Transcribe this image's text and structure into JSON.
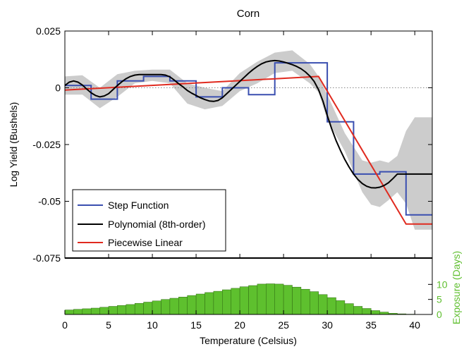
{
  "chart_data": {
    "type": "line",
    "title": "Corn",
    "xlabel": "Temperature (Celsius)",
    "ylabel": "Log Yield (Bushels)",
    "y2label": "Exposure (Days)",
    "xlim": [
      0,
      42
    ],
    "ylim": [
      -0.075,
      0.025
    ],
    "y2lim": [
      0,
      15
    ],
    "x_ticks": [
      "0",
      "5",
      "10",
      "15",
      "20",
      "25",
      "30",
      "35",
      "40"
    ],
    "y_ticks": [
      "0.025",
      "0",
      "-0.025",
      "-0.05",
      "-0.075"
    ],
    "y2_ticks": [
      "0",
      "5",
      "10"
    ],
    "legend_position": "bottom-left",
    "colors": {
      "step": "#3a4fb0",
      "poly": "#000000",
      "linear": "#e02a1f",
      "band": "#cccccc",
      "hist": "#5ec02e"
    },
    "series": [
      {
        "name": "Step Function",
        "kind": "step",
        "edges": [
          0,
          3,
          6,
          9,
          12,
          15,
          18,
          21,
          24,
          27,
          30,
          33,
          36,
          39,
          42
        ],
        "values": [
          0.001,
          -0.005,
          0.003,
          0.005,
          0.003,
          -0.004,
          0.0,
          -0.003,
          0.011,
          0.011,
          -0.015,
          -0.038,
          -0.037,
          -0.056
        ]
      },
      {
        "name": "Polynomial (8th-order)",
        "kind": "line",
        "x": [
          0,
          0.5,
          1,
          1.5,
          2,
          2.5,
          3,
          3.5,
          4,
          4.5,
          5,
          5.5,
          6,
          6.5,
          7,
          7.5,
          8,
          8.5,
          9,
          9.5,
          10,
          10.5,
          11,
          11.5,
          12,
          12.5,
          13,
          13.5,
          14,
          14.5,
          15,
          15.5,
          16,
          16.5,
          17,
          17.5,
          18,
          18.5,
          19,
          19.5,
          20,
          20.5,
          21,
          21.5,
          22,
          22.5,
          23,
          23.5,
          24,
          24.5,
          25,
          25.5,
          26,
          26.5,
          27,
          27.5,
          28,
          28.5,
          29,
          29.5,
          30,
          30.5,
          31,
          31.5,
          32,
          32.5,
          33,
          33.5,
          34,
          34.5,
          35,
          35.5,
          36,
          36.5,
          37,
          37.5,
          38,
          38.5,
          39,
          39.5,
          40,
          40.5,
          41,
          41.5,
          42
        ],
        "values": [
          0.001,
          0.0025,
          0.003,
          0.0025,
          0.0012,
          -0.0006,
          -0.0022,
          -0.0034,
          -0.004,
          -0.0036,
          -0.0026,
          -0.0008,
          0.001,
          0.0026,
          0.004,
          0.005,
          0.0056,
          0.0058,
          0.0058,
          0.0058,
          0.0058,
          0.0058,
          0.0058,
          0.0056,
          0.0048,
          0.0034,
          0.0018,
          0.0004,
          -0.0012,
          -0.0024,
          -0.0034,
          -0.0044,
          -0.0052,
          -0.0058,
          -0.006,
          -0.0056,
          -0.0044,
          -0.0026,
          -0.0008,
          0.001,
          0.0028,
          0.0046,
          0.0064,
          0.008,
          0.0094,
          0.0106,
          0.0114,
          0.0118,
          0.012,
          0.0118,
          0.0114,
          0.0108,
          0.0102,
          0.0094,
          0.0084,
          0.007,
          0.0052,
          0.0028,
          -0.0008,
          -0.0058,
          -0.0122,
          -0.018,
          -0.0232,
          -0.0276,
          -0.0316,
          -0.035,
          -0.038,
          -0.0404,
          -0.0422,
          -0.0434,
          -0.044,
          -0.0441,
          -0.0438,
          -0.043,
          -0.0418,
          -0.04,
          -0.038,
          -0.038,
          -0.038,
          -0.038,
          -0.038,
          -0.038,
          -0.038,
          -0.038,
          -0.038
        ]
      },
      {
        "name": "Piecewise Linear",
        "kind": "line",
        "x": [
          0,
          29,
          39,
          42
        ],
        "values": [
          -0.001,
          0.005,
          -0.06,
          -0.06
        ]
      }
    ],
    "confidence_band": {
      "x": [
        0,
        2,
        4,
        6,
        8,
        10,
        12,
        14,
        16,
        18,
        20,
        22,
        24,
        26,
        28,
        29,
        30,
        32,
        34,
        35,
        36,
        37,
        38,
        39,
        40,
        42
      ],
      "upper": [
        0.005,
        0.0055,
        0.0,
        0.006,
        0.0075,
        0.008,
        0.008,
        0.002,
        0.0,
        -0.0015,
        0.0065,
        0.0115,
        0.0155,
        0.0165,
        0.0105,
        0.005,
        -0.003,
        -0.02,
        -0.032,
        -0.033,
        -0.032,
        -0.033,
        -0.03,
        -0.019,
        -0.013,
        -0.013
      ],
      "lower": [
        -0.003,
        -0.003,
        -0.009,
        -0.004,
        0.002,
        0.003,
        0.002,
        -0.007,
        -0.0095,
        -0.008,
        -0.0015,
        0.002,
        0.0065,
        0.0075,
        0.002,
        -0.002,
        -0.014,
        -0.028,
        -0.046,
        -0.0515,
        -0.0525,
        -0.0495,
        -0.046,
        -0.051,
        -0.0625,
        -0.0625
      ]
    },
    "exposure_histogram": {
      "bin_edges_start": 0,
      "bin_width": 1,
      "values": [
        1.5,
        1.7,
        1.9,
        2.1,
        2.4,
        2.7,
        3.0,
        3.3,
        3.7,
        4.1,
        4.5,
        5.0,
        5.4,
        5.8,
        6.3,
        6.8,
        7.3,
        7.7,
        8.2,
        8.7,
        9.2,
        9.6,
        10.1,
        10.2,
        10.1,
        9.7,
        9.1,
        8.4,
        7.6,
        6.6,
        5.6,
        4.6,
        3.6,
        2.7,
        2.0,
        1.3,
        0.8,
        0.4,
        0.2,
        0.1,
        0.05,
        0.02
      ]
    },
    "reference_line_y": 0
  }
}
